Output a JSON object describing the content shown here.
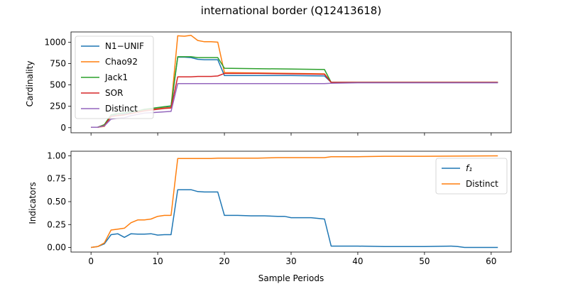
{
  "chart_data": {
    "title": "international border (Q12413618)",
    "xlabel": "Sample Periods",
    "x_ticks": [
      0,
      10,
      20,
      30,
      40,
      50,
      60
    ],
    "xlim": [
      -3,
      63
    ],
    "subplots": [
      {
        "type": "line",
        "ylabel": "Cardinality",
        "ylim": [
          -60,
          1120
        ],
        "y_ticks": [
          0,
          250,
          500,
          750,
          1000
        ],
        "legend_position": "upper-left",
        "grid": false,
        "series": [
          {
            "name": "N1−UNIF",
            "color": "#1f77b4",
            "x": [
              0,
              1,
              2,
              3,
              4,
              5,
              6,
              7,
              8,
              9,
              10,
              11,
              12,
              13,
              14,
              15,
              16,
              17,
              18,
              19,
              20,
              25,
              30,
              35,
              36,
              40,
              50,
              61
            ],
            "y": [
              5,
              5,
              25,
              145,
              150,
              160,
              175,
              190,
              205,
              215,
              225,
              235,
              240,
              825,
              825,
              820,
              800,
              795,
              795,
              795,
              610,
              610,
              610,
              605,
              530,
              530,
              530,
              530
            ]
          },
          {
            "name": "Chao92",
            "color": "#ff7f0e",
            "x": [
              0,
              1,
              2,
              3,
              4,
              5,
              6,
              7,
              8,
              9,
              10,
              11,
              12,
              13,
              14,
              15,
              16,
              17,
              18,
              19,
              20,
              25,
              30,
              35,
              36,
              40,
              50,
              61
            ],
            "y": [
              5,
              5,
              15,
              130,
              145,
              150,
              165,
              185,
              200,
              210,
              220,
              230,
              235,
              1075,
              1070,
              1080,
              1020,
              1005,
              1005,
              1000,
              645,
              640,
              635,
              630,
              530,
              530,
              530,
              530
            ]
          },
          {
            "name": "Jack1",
            "color": "#2ca02c",
            "x": [
              0,
              1,
              2,
              3,
              4,
              5,
              6,
              7,
              8,
              9,
              10,
              11,
              12,
              13,
              14,
              15,
              16,
              17,
              18,
              19,
              20,
              25,
              30,
              35,
              36,
              40,
              50,
              61
            ],
            "y": [
              5,
              5,
              35,
              150,
              165,
              175,
              185,
              195,
              215,
              225,
              235,
              245,
              255,
              830,
              830,
              830,
              820,
              820,
              820,
              820,
              695,
              690,
              685,
              680,
              530,
              530,
              530,
              530
            ]
          },
          {
            "name": "SOR",
            "color": "#d62728",
            "x": [
              0,
              1,
              2,
              3,
              4,
              5,
              6,
              7,
              8,
              9,
              10,
              11,
              12,
              13,
              14,
              15,
              16,
              17,
              18,
              19,
              20,
              25,
              30,
              35,
              36,
              40,
              50,
              61
            ],
            "y": [
              5,
              5,
              25,
              130,
              140,
              150,
              165,
              180,
              195,
              205,
              215,
              225,
              230,
              595,
              595,
              595,
              600,
              600,
              600,
              605,
              635,
              635,
              630,
              625,
              530,
              530,
              530,
              530
            ]
          },
          {
            "name": "Distinct",
            "color": "#9467bd",
            "x": [
              0,
              1,
              2,
              3,
              4,
              5,
              6,
              7,
              8,
              9,
              10,
              11,
              12,
              13,
              14,
              15,
              16,
              17,
              18,
              19,
              20,
              25,
              30,
              35,
              36,
              40,
              50,
              61
            ],
            "y": [
              5,
              5,
              20,
              100,
              110,
              115,
              140,
              155,
              170,
              175,
              180,
              185,
              190,
              515,
              515,
              515,
              515,
              515,
              515,
              515,
              515,
              515,
              515,
              515,
              520,
              525,
              525,
              525
            ]
          }
        ]
      },
      {
        "type": "line",
        "ylabel": "Indicators",
        "ylim": [
          -0.05,
          1.05
        ],
        "y_ticks": [
          "0.00",
          "0.25",
          "0.50",
          "0.75",
          "1.00"
        ],
        "legend_position": "upper-right",
        "grid": false,
        "series": [
          {
            "name": "f₁",
            "color": "#1f77b4",
            "x": [
              0,
              1,
              2,
              3,
              4,
              5,
              6,
              7,
              8,
              9,
              10,
              11,
              12,
              13,
              14,
              15,
              16,
              17,
              18,
              19,
              20,
              22,
              24,
              26,
              28,
              29,
              30,
              33,
              35,
              36,
              40,
              44,
              50,
              54,
              55,
              56,
              61
            ],
            "y": [
              0,
              0.01,
              0.04,
              0.14,
              0.15,
              0.11,
              0.15,
              0.145,
              0.145,
              0.15,
              0.135,
              0.14,
              0.14,
              0.63,
              0.63,
              0.63,
              0.61,
              0.605,
              0.605,
              0.605,
              0.35,
              0.35,
              0.345,
              0.345,
              0.34,
              0.34,
              0.325,
              0.325,
              0.31,
              0.015,
              0.015,
              0.01,
              0.01,
              0.015,
              0.01,
              0.0,
              0.0
            ]
          },
          {
            "name": "Distinct",
            "color": "#ff7f0e",
            "x": [
              0,
              1,
              2,
              3,
              4,
              5,
              6,
              7,
              8,
              9,
              10,
              11,
              12,
              13,
              14,
              15,
              16,
              17,
              18,
              19,
              20,
              25,
              28,
              30,
              35,
              36,
              40,
              44,
              50,
              61
            ],
            "y": [
              0,
              0.01,
              0.05,
              0.19,
              0.2,
              0.21,
              0.27,
              0.3,
              0.3,
              0.31,
              0.34,
              0.35,
              0.35,
              0.97,
              0.97,
              0.97,
              0.97,
              0.97,
              0.97,
              0.975,
              0.975,
              0.975,
              0.98,
              0.98,
              0.98,
              0.99,
              0.99,
              0.995,
              0.995,
              1.0
            ]
          }
        ]
      }
    ]
  }
}
